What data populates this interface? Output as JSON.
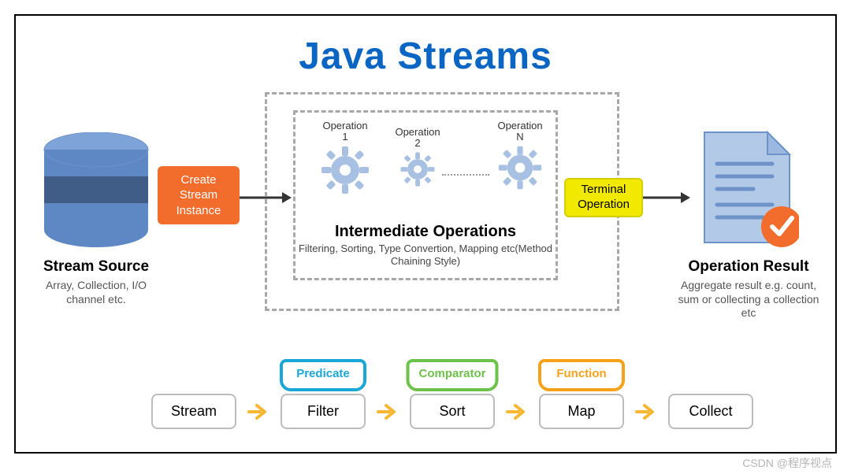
{
  "title": "Java Streams",
  "colors": {
    "title": "#0a66c2",
    "orange": "#f26c2c",
    "yellow_bg": "#f2e900",
    "yellow_border": "#d5ce00",
    "db_top": "#7ea3d8",
    "db_light": "#5e88c4",
    "db_dark": "#3f5d87",
    "gear": "#a8c1e3",
    "doc_fill": "#b2c9e8",
    "doc_edge": "#6e93c8",
    "check_bg": "#f26c2c",
    "pipe_arrow": "#f7b733",
    "predicate": "#1aa6d6",
    "comparator": "#6cc24a",
    "function": "#f7a11b",
    "dash": "#a8a8a8",
    "arrow": "#333333"
  },
  "source": {
    "title": "Stream Source",
    "desc": "Array, Collection, I/O channel etc."
  },
  "create_box": "Create Stream Instance",
  "intermediate": {
    "title": "Intermediate Operations",
    "desc": "Filtering, Sorting, Type Convertion, Mapping etc(Method Chaining Style)",
    "ops": [
      {
        "label_top": "Operation",
        "label_n": "1"
      },
      {
        "label_top": "Operation",
        "label_n": "2"
      },
      {
        "label_top": "Operation",
        "label_n": "N"
      }
    ]
  },
  "terminal_label": "Terminal Operation",
  "result": {
    "title": "Operation Result",
    "desc": "Aggregate result e.g. count, sum or collecting a collection etc"
  },
  "pipeline": [
    {
      "name": "Stream",
      "param": null,
      "param_color": null
    },
    {
      "name": "Filter",
      "param": "Predicate",
      "param_color": "#1aa6d6"
    },
    {
      "name": "Sort",
      "param": "Comparator",
      "param_color": "#6cc24a"
    },
    {
      "name": "Map",
      "param": "Function",
      "param_color": "#f7a11b"
    },
    {
      "name": "Collect",
      "param": null,
      "param_color": null
    }
  ],
  "watermark": "CSDN @程序视点"
}
